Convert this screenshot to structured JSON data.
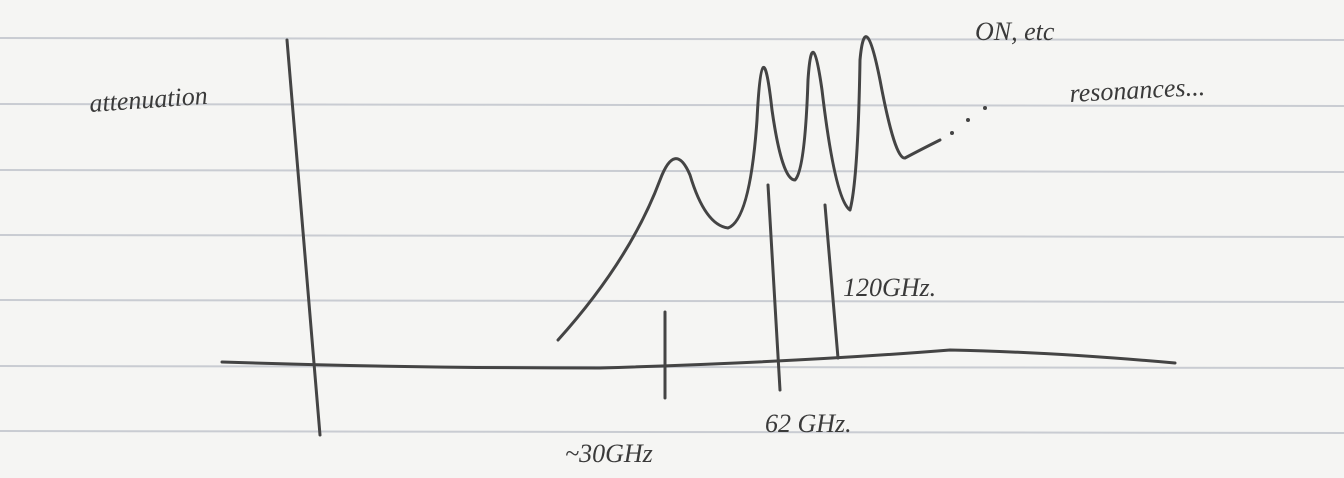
{
  "labels": {
    "y_axis": "attenuation",
    "top_note": "ON, etc",
    "resonances": "resonances...",
    "mark_120": "120GHz.",
    "mark_62": "62 GHz.",
    "mark_30": "~30GHz"
  }
}
